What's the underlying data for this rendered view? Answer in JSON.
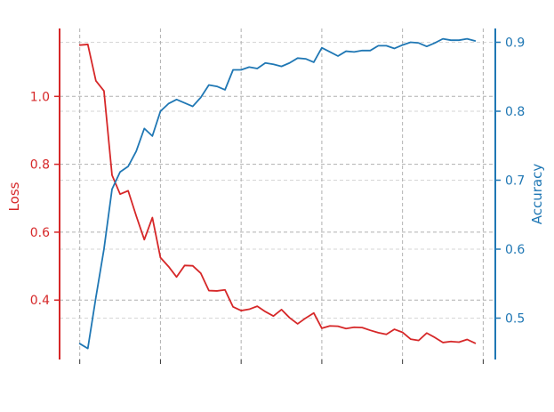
{
  "chart_data": {
    "type": "line",
    "title": "",
    "xlabel": "",
    "x": [
      0,
      1,
      2,
      3,
      4,
      5,
      6,
      7,
      8,
      9,
      10,
      11,
      12,
      13,
      14,
      15,
      16,
      17,
      18,
      19,
      20,
      21,
      22,
      23,
      24,
      25,
      26,
      27,
      28,
      29,
      30,
      31,
      32,
      33,
      34,
      35,
      36,
      37,
      38,
      39,
      40,
      41,
      42,
      43,
      44,
      45,
      46,
      47,
      48,
      49
    ],
    "xlim": [
      -2.5,
      51.5
    ],
    "x_ticks": [
      0,
      10,
      20,
      30,
      40,
      50
    ],
    "grid": true,
    "series": [
      {
        "name": "Loss",
        "axis": "left",
        "color": "#d62728",
        "values": [
          1.151,
          1.153,
          1.046,
          1.016,
          0.768,
          0.712,
          0.722,
          0.648,
          0.578,
          0.643,
          0.525,
          0.499,
          0.468,
          0.502,
          0.501,
          0.479,
          0.428,
          0.427,
          0.43,
          0.38,
          0.369,
          0.373,
          0.382,
          0.366,
          0.353,
          0.372,
          0.348,
          0.33,
          0.347,
          0.362,
          0.317,
          0.324,
          0.323,
          0.316,
          0.32,
          0.319,
          0.311,
          0.304,
          0.299,
          0.314,
          0.305,
          0.285,
          0.281,
          0.303,
          0.29,
          0.275,
          0.278,
          0.276,
          0.284,
          0.273
        ]
      },
      {
        "name": "Accuracy",
        "axis": "right",
        "color": "#1f77b4",
        "values": [
          0.463,
          0.456,
          0.53,
          0.6,
          0.687,
          0.712,
          0.72,
          0.742,
          0.775,
          0.764,
          0.8,
          0.811,
          0.817,
          0.812,
          0.807,
          0.82,
          0.838,
          0.836,
          0.831,
          0.86,
          0.86,
          0.864,
          0.862,
          0.87,
          0.868,
          0.865,
          0.87,
          0.877,
          0.876,
          0.871,
          0.892,
          0.886,
          0.88,
          0.887,
          0.886,
          0.888,
          0.888,
          0.895,
          0.895,
          0.891,
          0.896,
          0.9,
          0.899,
          0.894,
          0.899,
          0.905,
          0.903,
          0.903,
          0.905,
          0.902
        ]
      }
    ],
    "y_left": {
      "label": "Loss",
      "lim": [
        0.225,
        1.2
      ],
      "ticks": [
        0.4,
        0.6,
        0.8,
        1.0
      ],
      "tick_labels": [
        "0.4",
        "0.6",
        "0.8",
        "1.0"
      ],
      "color": "#d62728"
    },
    "y_right": {
      "label": "Accuracy",
      "lim": [
        0.44,
        0.92
      ],
      "ticks": [
        0.5,
        0.6,
        0.7,
        0.8,
        0.9
      ],
      "tick_labels": [
        "0.5",
        "0.6",
        "0.7",
        "0.8",
        "0.9"
      ],
      "color": "#1f77b4"
    }
  }
}
